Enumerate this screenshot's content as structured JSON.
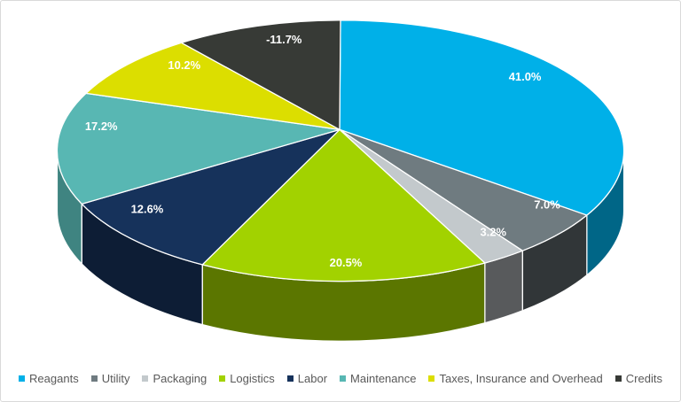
{
  "chart_data": {
    "type": "pie",
    "style": "3d",
    "title": "",
    "legend_position": "bottom",
    "categories": [
      "Reagants",
      "Utility",
      "Packaging",
      "Logistics",
      "Labor",
      "Maintenance",
      "Taxes, Insurance and Overhead",
      "Credits"
    ],
    "values": [
      41.0,
      7.0,
      3.2,
      20.5,
      12.6,
      17.2,
      10.2,
      -11.7
    ],
    "data_labels": [
      "41.0%",
      "7.0%",
      "3.2%",
      "20.5%",
      "12.6%",
      "17.2%",
      "10.2%",
      "-11.7%"
    ],
    "colors": [
      "#00B0E8",
      "#6F7B80",
      "#C3C9CC",
      "#A2D200",
      "#16325B",
      "#58B7B3",
      "#DCDE00",
      "#373A36"
    ],
    "label_color": "#FFFFFF",
    "legend_text_color": "#595959",
    "frame_border_color": "#D9D9D9",
    "background_color": "#FFFFFF"
  }
}
